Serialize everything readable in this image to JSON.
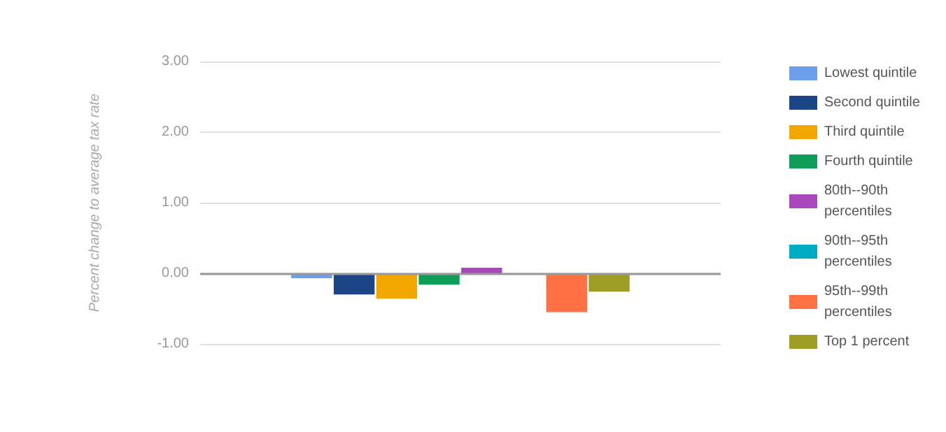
{
  "chart_data": {
    "type": "bar",
    "ylabel": "Percent change to average tax rate",
    "categories": [
      null
    ],
    "series": [
      {
        "name": "Lowest quintile",
        "color": "#6d9eeb",
        "values": [
          -0.07
        ]
      },
      {
        "name": "Second quintile",
        "color": "#1c4587",
        "values": [
          -0.3
        ]
      },
      {
        "name": "Third quintile",
        "color": "#f1a600",
        "values": [
          -0.36
        ]
      },
      {
        "name": "Fourth quintile",
        "color": "#0f9d58",
        "values": [
          -0.16
        ]
      },
      {
        "name": "80th--90th percentiles",
        "color": "#ab47bc",
        "values": [
          0.08
        ]
      },
      {
        "name": "90th--95th percentiles",
        "color": "#00acc1",
        "values": [
          0
        ]
      },
      {
        "name": "95th--99th percentiles",
        "color": "#ff7043",
        "values": [
          -0.55
        ]
      },
      {
        "name": "Top 1 percent",
        "color": "#9e9d24",
        "values": [
          -0.26
        ]
      }
    ],
    "ylim": [
      -1,
      3
    ],
    "yticks": [
      {
        "value": -1,
        "label": "-1.00"
      },
      {
        "value": 0,
        "label": "0.00"
      },
      {
        "value": 1,
        "label": "1.00"
      },
      {
        "value": 2,
        "label": "2.00"
      },
      {
        "value": 3,
        "label": "3.00"
      }
    ],
    "grid": "y",
    "legend": "right"
  }
}
